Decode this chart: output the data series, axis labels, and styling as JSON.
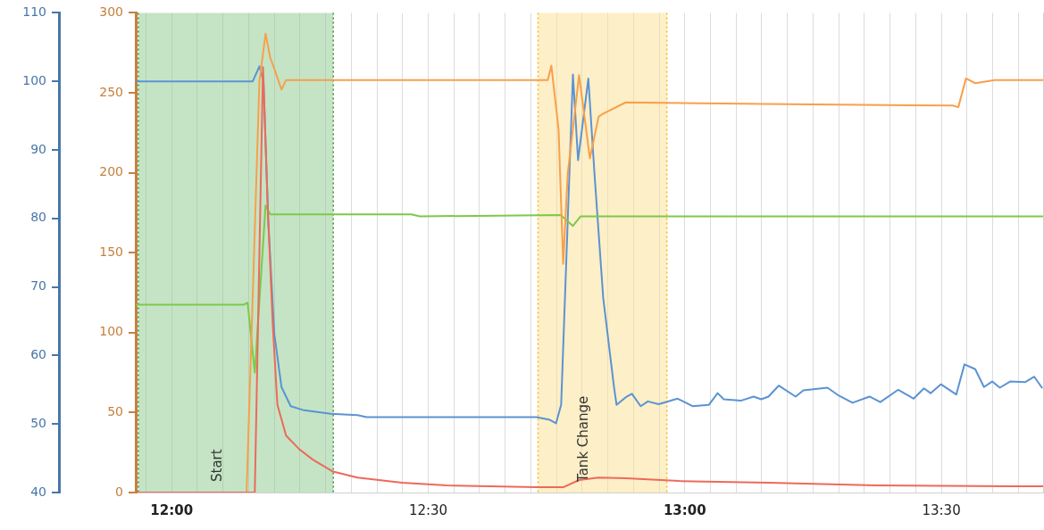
{
  "chart_data": {
    "type": "line",
    "xlim": [
      11.93,
      13.7
    ],
    "xticks": [
      {
        "value": 11.95,
        "label": null
      },
      {
        "value": 12,
        "label": "12:00"
      },
      {
        "value": 12.05,
        "label": null
      },
      {
        "value": 12.1,
        "label": null
      },
      {
        "value": 12.15,
        "label": null
      },
      {
        "value": 12.2,
        "label": null
      },
      {
        "value": 12.25,
        "label": null
      },
      {
        "value": 12.3,
        "label": null
      },
      {
        "value": 12.35,
        "label": null
      },
      {
        "value": 12.4,
        "label": null
      },
      {
        "value": 12.45,
        "label": null
      },
      {
        "value": 12.5,
        "label": "12:30"
      },
      {
        "value": 12.55,
        "label": null
      },
      {
        "value": 12.6,
        "label": null
      },
      {
        "value": 12.65,
        "label": null
      },
      {
        "value": 12.7,
        "label": null
      },
      {
        "value": 12.75,
        "label": null
      },
      {
        "value": 12.8,
        "label": null
      },
      {
        "value": 12.85,
        "label": null
      },
      {
        "value": 12.9,
        "label": null
      },
      {
        "value": 12.95,
        "label": null
      },
      {
        "value": 13,
        "label": "13:00"
      },
      {
        "value": 13.05,
        "label": null
      },
      {
        "value": 13.1,
        "label": null
      },
      {
        "value": 13.15,
        "label": null
      },
      {
        "value": 13.2,
        "label": null
      },
      {
        "value": 13.25,
        "label": null
      },
      {
        "value": 13.3,
        "label": null
      },
      {
        "value": 13.35,
        "label": null
      },
      {
        "value": 13.4,
        "label": null
      },
      {
        "value": 13.45,
        "label": null
      },
      {
        "value": 13.5,
        "label": "13:30"
      },
      {
        "value": 13.55,
        "label": null
      },
      {
        "value": 13.6,
        "label": null
      },
      {
        "value": 13.65,
        "label": null
      }
    ],
    "ylim": [
      40,
      110
    ],
    "yticks": [
      40,
      50,
      60,
      70,
      80,
      90,
      100,
      110
    ],
    "y2lim": [
      0,
      300
    ],
    "y2ticks": [
      0,
      50,
      100,
      150,
      200,
      250,
      300
    ],
    "grid": "x",
    "legend": false,
    "marker": "none",
    "line_style": "solid",
    "ref_lines": [
      {
        "axis": "x",
        "value": 11.935,
        "color": "#3f8f3f",
        "line_style": "dotted"
      },
      {
        "axis": "x",
        "value": 12.315,
        "color": "#3f8f3f",
        "line_style": "dotted"
      },
      {
        "axis": "x",
        "value": 12.714,
        "color": "#f2b91c",
        "line_style": "dotted"
      },
      {
        "axis": "x",
        "value": 12.965,
        "color": "#f2b91c",
        "line_style": "dotted"
      }
    ],
    "bands": [
      {
        "axis": "x",
        "from": 11.935,
        "to": 12.315,
        "label": "Start",
        "color": "#8cc98c"
      },
      {
        "axis": "x",
        "from": 12.714,
        "to": 12.965,
        "label": "Tank Change",
        "color": "#fbe08f"
      }
    ],
    "series": [
      {
        "color": "#5b93d3",
        "x": [
          11.93,
          12.158,
          12.171,
          12.179,
          12.188,
          12.2,
          12.214,
          12.232,
          12.258,
          12.31,
          12.362,
          12.38,
          12.711,
          12.737,
          12.749,
          12.759,
          12.772,
          12.782,
          12.792,
          12.812,
          12.824,
          12.841,
          12.862,
          12.867,
          12.885,
          12.897,
          12.914,
          12.928,
          12.949,
          12.986,
          13.015,
          13.047,
          13.064,
          13.076,
          13.109,
          13.134,
          13.149,
          13.163,
          13.183,
          13.216,
          13.231,
          13.278,
          13.301,
          13.327,
          13.36,
          13.381,
          13.416,
          13.446,
          13.466,
          13.479,
          13.499,
          13.529,
          13.545,
          13.566,
          13.583,
          13.599,
          13.614,
          13.634,
          13.663,
          13.681,
          13.696
        ],
        "values": [
          100,
          100,
          102.2,
          100,
          80,
          63.2,
          55.4,
          52.6,
          52,
          51.5,
          51.3,
          51,
          51,
          50.6,
          50.1,
          52.8,
          80,
          101,
          88.5,
          100.4,
          86.5,
          68.4,
          55.4,
          52.8,
          53.9,
          54.4,
          52.6,
          53.3,
          52.9,
          53.7,
          52.6,
          52.8,
          54.5,
          53.6,
          53.4,
          54,
          53.6,
          54,
          55.6,
          54,
          54.9,
          55.3,
          54.1,
          53.1,
          54,
          53.2,
          55,
          53.7,
          55.2,
          54.5,
          55.8,
          54.3,
          58.7,
          58,
          55.4,
          56.2,
          55.3,
          56.2,
          56.1,
          56.9,
          55.3
        ]
      },
      {
        "color": "#7dc94a",
        "x": [
          11.93,
          12.14,
          12.148,
          12.162,
          12.183,
          12.192,
          12.467,
          12.484,
          12.758,
          12.782,
          12.797,
          13.7
        ],
        "values": [
          67.4,
          67.4,
          67.7,
          57.5,
          81.9,
          80.6,
          80.6,
          80.3,
          80.5,
          78.9,
          80.3,
          80.3
        ]
      },
      {
        "color": "#f7a04b",
        "axis": "y2",
        "x": [
          11.93,
          12.146,
          12.171,
          12.183,
          12.192,
          12.199,
          12.214,
          12.223,
          12.733,
          12.74,
          12.754,
          12.763,
          12.772,
          12.794,
          12.815,
          12.832,
          12.841,
          12.885,
          13.153,
          13.522,
          13.533,
          13.548,
          13.566,
          13.604,
          13.7
        ],
        "values": [
          0,
          0,
          257,
          287,
          272,
          266,
          252,
          258,
          258,
          267,
          227,
          143,
          200,
          261,
          209,
          235,
          237,
          244,
          243,
          242,
          241,
          259,
          256,
          258,
          258
        ]
      },
      {
        "color": "#ec6a5a",
        "axis": "y2",
        "x": [
          11.93,
          12.162,
          12.178,
          12.188,
          12.197,
          12.206,
          12.223,
          12.249,
          12.275,
          12.313,
          12.362,
          12.449,
          12.536,
          12.711,
          12.763,
          12.794,
          12.832,
          12.885,
          12.954,
          12.989,
          13.163,
          13.372,
          13.634,
          13.7
        ],
        "values": [
          0,
          0,
          266,
          172,
          105,
          55,
          35.6,
          27,
          20.6,
          13.3,
          9.4,
          6.1,
          4.4,
          3.3,
          3.3,
          7.8,
          9.4,
          8.9,
          7.8,
          7.2,
          6.1,
          4.4,
          3.9,
          3.9
        ]
      }
    ]
  }
}
